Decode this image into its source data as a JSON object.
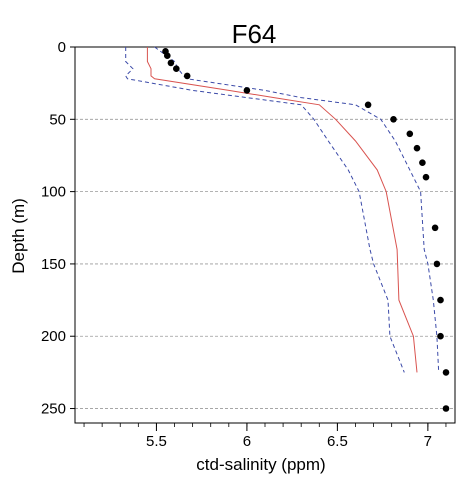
{
  "chart_data": {
    "type": "scatter",
    "title": "F64",
    "xlabel": "ctd-salinity (ppm)",
    "ylabel": "Depth (m)",
    "xlim": [
      5.05,
      7.15
    ],
    "ylim": [
      0,
      260
    ],
    "y_inverted": true,
    "x_ticks": [
      5.5,
      6,
      6.5,
      7
    ],
    "x_tick_labels": [
      "5.5",
      "6",
      "6.5",
      "7"
    ],
    "x_minor_step": 0.1,
    "y_ticks": [
      0,
      50,
      100,
      150,
      200,
      250
    ],
    "y_tick_labels": [
      "0",
      "50",
      "100",
      "150",
      "200",
      "250"
    ],
    "grid": "horizontal dashed at major y ticks",
    "legend": "none",
    "points": {
      "x": [
        5.55,
        5.56,
        5.58,
        5.61,
        5.67,
        6.0,
        6.67,
        6.81,
        6.9,
        6.94,
        6.97,
        6.99,
        7.04,
        7.05,
        7.07,
        7.07,
        7.1,
        7.1
      ],
      "y": [
        3,
        6,
        11,
        15,
        20,
        30,
        40,
        50,
        60,
        70,
        80,
        90,
        125,
        150,
        175,
        200,
        225,
        250
      ],
      "color": "#000000"
    },
    "mean_line": {
      "x": [
        5.45,
        5.45,
        5.47,
        5.47,
        5.49,
        5.9,
        6.15,
        6.4,
        6.49,
        6.6,
        6.72,
        6.77,
        6.83,
        6.84,
        6.92,
        6.94
      ],
      "y": [
        0,
        10,
        15,
        20,
        22,
        30,
        35,
        40,
        50,
        65,
        85,
        100,
        140,
        175,
        200,
        225
      ],
      "color": "#d9534f"
    },
    "bound_lines": [
      {
        "x": [
          5.33,
          5.33,
          5.37,
          5.33,
          5.34,
          5.7,
          6.0,
          6.3,
          6.37,
          6.45,
          6.56,
          6.62,
          6.68,
          6.7,
          6.78,
          6.79,
          6.87
        ],
        "y": [
          0,
          10,
          15,
          20,
          22,
          30,
          35,
          40,
          50,
          65,
          85,
          100,
          140,
          150,
          175,
          200,
          225
        ],
        "color": "#3b4aa8"
      },
      {
        "x": [
          5.49,
          5.6,
          5.62,
          5.65,
          5.67,
          6.1,
          6.3,
          6.6,
          6.74,
          6.82,
          6.9,
          6.96,
          6.98,
          7.0,
          7.03,
          7.05,
          7.06
        ],
        "y": [
          0,
          10,
          15,
          20,
          22,
          30,
          35,
          40,
          50,
          65,
          85,
          100,
          140,
          150,
          175,
          200,
          225
        ],
        "color": "#3b4aa8"
      }
    ]
  }
}
